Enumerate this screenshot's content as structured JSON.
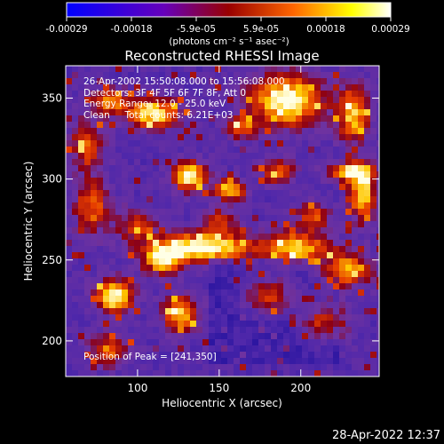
{
  "colorbar": {
    "tick_labels": [
      "-0.00029",
      "-0.00018",
      "-5.9e-05",
      "5.9e-05",
      "0.00018",
      "0.00029"
    ],
    "units_label": "(photons cm⁻² s⁻¹ asec⁻²)",
    "range": [
      -0.00029,
      0.00029
    ],
    "colors": [
      "#0000ff",
      "#6600bb",
      "#990000",
      "#ff6600",
      "#ffff00",
      "#ffffff"
    ]
  },
  "chart_data": {
    "type": "heatmap",
    "title": "Reconstructed RHESSI Image",
    "xlabel": "Heliocentric X (arcsec)",
    "ylabel": "Heliocentric Y (arcsec)",
    "xlim": [
      56,
      248
    ],
    "ylim": [
      178,
      370
    ],
    "x_ticks": [
      100,
      150,
      200
    ],
    "y_ticks": [
      200,
      250,
      300,
      350
    ],
    "annotations": [
      "26-Apr-2002 15:50:08.000 to 15:56:08.000",
      "Detectors: 3F 4F 5F 6F 7F 8F, Att 0",
      "Energy Range: 12.0 - 25.0 keV",
      "Clean     Total counts: 6.21E+03"
    ],
    "peak_label": "Position of Peak = [241,350]",
    "peak_position": [
      241,
      350
    ]
  },
  "footer": {
    "date": "28-Apr-2022 12:37"
  }
}
